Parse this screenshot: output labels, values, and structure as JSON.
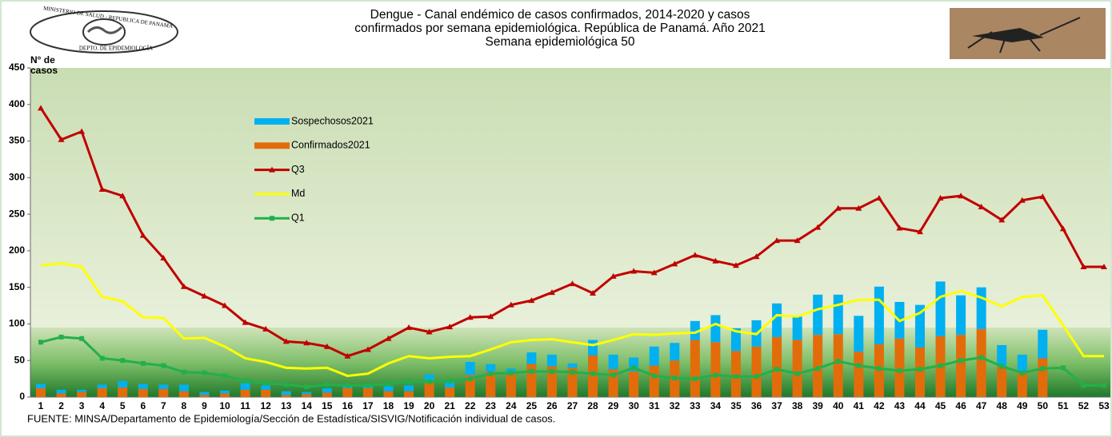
{
  "logo": {
    "top": "MINISTERIO DE SALUD - REPUBLICA DE PANAMÁ",
    "bottom": "DEPTO. DE EPIDEMIOLOGÍA"
  },
  "chart_data": {
    "type": "bar-line",
    "title": [
      "Dengue - Canal endémico de casos confirmados, 2014-2020 y casos",
      "confirmados por semana epidemiológica. República de Panamá. Año 2021",
      "Semana epidemiológica 50"
    ],
    "y_label": [
      "N° de",
      "casos"
    ],
    "source": "FUENTE: MINSA/Departamento de Epidemiología/Sección de Estadística/SISVIG/Notificación individual de casos.",
    "categories": [
      "1",
      "2",
      "3",
      "4",
      "5",
      "6",
      "7",
      "8",
      "9",
      "10",
      "11",
      "12",
      "13",
      "14",
      "15",
      "16",
      "17",
      "18",
      "19",
      "20",
      "21",
      "22",
      "23",
      "24",
      "25",
      "26",
      "27",
      "28",
      "29",
      "30",
      "31",
      "32",
      "33",
      "34",
      "35",
      "36",
      "37",
      "38",
      "39",
      "40",
      "41",
      "42",
      "43",
      "44",
      "45",
      "46",
      "47",
      "48",
      "49",
      "50",
      "51",
      "52",
      "53"
    ],
    "ylim": [
      0,
      450
    ],
    "yticks": [
      0,
      50,
      100,
      150,
      200,
      250,
      300,
      350,
      400,
      450
    ],
    "legend": "upper left",
    "series": [
      {
        "name": "Sospechosos2021",
        "kind": "bar",
        "color": "#00b0f0",
        "values": [
          6,
          5,
          3,
          5,
          9,
          7,
          6,
          9,
          4,
          4,
          9,
          6,
          5,
          3,
          6,
          3,
          3,
          7,
          8,
          11,
          7,
          18,
          10,
          7,
          16,
          16,
          6,
          21,
          20,
          19,
          26,
          24,
          26,
          37,
          31,
          36,
          46,
          32,
          55,
          54,
          49,
          79,
          50,
          58,
          75,
          54,
          57,
          29,
          25,
          39,
          null,
          null,
          null
        ]
      },
      {
        "name": "Confirmados2021",
        "kind": "bar",
        "color": "#e36c0a",
        "values": [
          12,
          5,
          7,
          12,
          13,
          11,
          11,
          8,
          3,
          5,
          10,
          10,
          3,
          4,
          6,
          12,
          12,
          8,
          8,
          20,
          13,
          30,
          35,
          32,
          45,
          42,
          40,
          57,
          38,
          35,
          43,
          50,
          78,
          75,
          63,
          69,
          82,
          78,
          85,
          86,
          62,
          72,
          80,
          68,
          83,
          85,
          93,
          42,
          33,
          53,
          null,
          null,
          null
        ]
      },
      {
        "name": "Q3",
        "kind": "line",
        "marker": "triangle",
        "color": "#c00000",
        "values": [
          395,
          352,
          363,
          284,
          275,
          221,
          190,
          151,
          138,
          125,
          102,
          93,
          76,
          74,
          69,
          56,
          65,
          80,
          95,
          89,
          96,
          109,
          110,
          126,
          132,
          143,
          155,
          142,
          165,
          172,
          170,
          182,
          194,
          186,
          180,
          192,
          214,
          214,
          232,
          258,
          258,
          272,
          231,
          226,
          272,
          275,
          260,
          242,
          269,
          274,
          230,
          178,
          178
        ]
      },
      {
        "name": "Md",
        "kind": "line",
        "marker": "none",
        "color": "#ffff00",
        "values": [
          180,
          183,
          178,
          137,
          131,
          109,
          108,
          80,
          81,
          69,
          53,
          48,
          40,
          39,
          40,
          29,
          32,
          46,
          56,
          53,
          55,
          56,
          65,
          75,
          78,
          79,
          75,
          71,
          78,
          86,
          85,
          87,
          88,
          100,
          90,
          86,
          112,
          110,
          120,
          126,
          133,
          133,
          104,
          115,
          137,
          145,
          136,
          124,
          137,
          139,
          98,
          56,
          56
        ]
      },
      {
        "name": "Q1",
        "kind": "line",
        "marker": "square",
        "color": "#22b04a",
        "values": [
          75,
          82,
          80,
          53,
          50,
          46,
          43,
          34,
          33,
          29,
          22,
          19,
          17,
          14,
          17,
          16,
          16,
          18,
          21,
          21,
          22,
          25,
          32,
          33,
          35,
          35,
          34,
          32,
          30,
          40,
          29,
          26,
          25,
          30,
          28,
          28,
          38,
          32,
          39,
          49,
          43,
          39,
          36,
          38,
          43,
          50,
          54,
          42,
          33,
          39,
          40,
          16,
          16
        ]
      }
    ]
  }
}
